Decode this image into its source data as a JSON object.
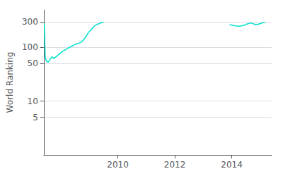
{
  "chart_data": {
    "type": "line",
    "ylabel": "World Ranking",
    "log": "y",
    "grid": "y",
    "ylim": [
      1,
      500
    ],
    "yticks": [
      5,
      10,
      50,
      100,
      300
    ],
    "xlim": [
      2007.4,
      2015.4
    ],
    "xticks": [
      2010,
      2012,
      2014
    ],
    "series": [
      {
        "color": "#00e0d0",
        "x": [
          2007.42,
          2007.45,
          2007.48,
          2007.52,
          2007.55,
          2007.58,
          2007.62,
          2007.65,
          2007.7,
          2007.75,
          2007.8,
          2007.85,
          2007.9,
          2007.95,
          2008.0,
          2008.08,
          2008.15,
          2008.22,
          2008.3,
          2008.38,
          2008.45,
          2008.52,
          2008.6,
          2008.68,
          2008.75,
          2008.83,
          2008.9,
          2008.97,
          2009.05,
          2009.13,
          2009.2,
          2009.28,
          2009.35,
          2009.42,
          2009.5
        ],
        "values": [
          280,
          70,
          58,
          55,
          53,
          55,
          60,
          63,
          67,
          62,
          65,
          68,
          72,
          75,
          80,
          85,
          90,
          95,
          100,
          105,
          110,
          115,
          118,
          122,
          130,
          145,
          165,
          190,
          210,
          235,
          255,
          268,
          278,
          288,
          295
        ]
      },
      {
        "color": "#00e0d0",
        "x": [
          2013.92,
          2014.0,
          2014.08,
          2014.17,
          2014.25,
          2014.33,
          2014.42,
          2014.5,
          2014.58,
          2014.67,
          2014.75,
          2014.83,
          2014.92,
          2015.0,
          2015.08,
          2015.17
        ],
        "values": [
          265,
          260,
          255,
          250,
          248,
          252,
          258,
          268,
          278,
          285,
          275,
          268,
          270,
          278,
          285,
          295
        ]
      }
    ]
  }
}
